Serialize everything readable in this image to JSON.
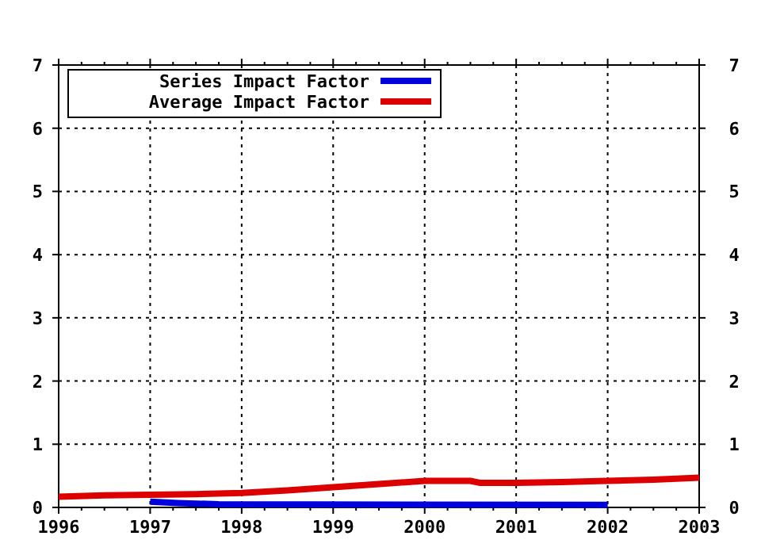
{
  "chart_data": {
    "type": "line",
    "xlim": [
      1996,
      2003
    ],
    "xticks": [
      1996,
      1997,
      1998,
      1999,
      2000,
      2001,
      2002,
      2003
    ],
    "ylim": [
      0,
      7
    ],
    "yticks": [
      0,
      1,
      2,
      3,
      4,
      5,
      6,
      7
    ],
    "y2lim": [
      0,
      7
    ],
    "y2ticks": [
      0,
      1,
      2,
      3,
      4,
      5,
      6,
      7
    ],
    "grid": true,
    "legend": "top left",
    "series": [
      {
        "name": "Series Impact Factor",
        "color": "#0000dd",
        "x": [
          1997,
          1997.3,
          1997.75,
          2002
        ],
        "values": [
          0.09,
          0.07,
          0.05,
          0.04
        ]
      },
      {
        "name": "Average Impact Factor",
        "color": "#dd0000",
        "x": [
          1996,
          1996.5,
          1997,
          1997.5,
          1998,
          1998.5,
          1999,
          1999.5,
          2000,
          2000.5,
          2000.6,
          2001,
          2001.5,
          2002,
          2002.5,
          2003
        ],
        "values": [
          0.17,
          0.19,
          0.2,
          0.21,
          0.23,
          0.27,
          0.32,
          0.37,
          0.42,
          0.42,
          0.39,
          0.39,
          0.4,
          0.42,
          0.44,
          0.47
        ]
      }
    ]
  }
}
